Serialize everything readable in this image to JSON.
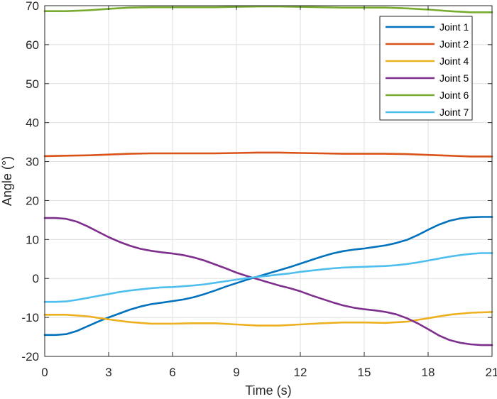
{
  "chart_data": {
    "type": "line",
    "title": "",
    "xlabel": "Time (s)",
    "ylabel": "Angle (°)",
    "xlim": [
      0,
      21
    ],
    "ylim": [
      -20,
      70
    ],
    "xticks": [
      0,
      3,
      6,
      9,
      12,
      15,
      18,
      21
    ],
    "yticks": [
      -20,
      -10,
      0,
      10,
      20,
      30,
      40,
      50,
      60,
      70
    ],
    "xtick_labels": [
      "0",
      "3",
      "6",
      "9",
      "12",
      "15",
      "18",
      "21"
    ],
    "ytick_labels": [
      "-20",
      "-10",
      "0",
      "10",
      "20",
      "30",
      "40",
      "50",
      "60",
      "70"
    ],
    "grid": true,
    "legend_position": "top-right",
    "series": [
      {
        "name": "Joint 1",
        "color": "#0072BD",
        "x": [
          0,
          0.5,
          1,
          1.5,
          2,
          2.5,
          3,
          3.5,
          4,
          4.5,
          5,
          5.5,
          6,
          6.5,
          7,
          7.5,
          8,
          8.5,
          9,
          9.5,
          10,
          10.5,
          11,
          11.5,
          12,
          12.5,
          13,
          13.5,
          14,
          14.5,
          15,
          15.5,
          16,
          16.5,
          17,
          17.5,
          18,
          18.5,
          19,
          19.5,
          20,
          20.5,
          21
        ],
        "y": [
          -14.5,
          -14.5,
          -14.3,
          -13.5,
          -12.3,
          -11.1,
          -10.0,
          -9.0,
          -8.0,
          -7.2,
          -6.6,
          -6.2,
          -5.8,
          -5.4,
          -4.8,
          -4.0,
          -3.1,
          -2.1,
          -1.2,
          -0.3,
          0.5,
          1.3,
          2.1,
          2.9,
          3.8,
          4.7,
          5.6,
          6.4,
          7.0,
          7.4,
          7.7,
          8.1,
          8.5,
          9.1,
          9.9,
          11.1,
          12.5,
          13.8,
          14.8,
          15.4,
          15.7,
          15.8,
          15.8
        ]
      },
      {
        "name": "Joint 2",
        "color": "#D95319",
        "x": [
          0,
          1,
          2,
          3,
          4,
          5,
          6,
          7,
          8,
          9,
          10,
          11,
          12,
          13,
          14,
          15,
          16,
          17,
          18,
          19,
          20,
          21
        ],
        "y": [
          31.4,
          31.5,
          31.6,
          31.8,
          32.0,
          32.1,
          32.1,
          32.1,
          32.1,
          32.2,
          32.3,
          32.3,
          32.2,
          32.1,
          32.0,
          32.0,
          32.0,
          31.9,
          31.7,
          31.5,
          31.3,
          31.3
        ]
      },
      {
        "name": "Joint 4",
        "color": "#EDB120",
        "x": [
          0,
          1,
          2,
          3,
          4,
          5,
          6,
          7,
          8,
          9,
          10,
          11,
          12,
          13,
          14,
          15,
          16,
          17,
          18,
          19,
          20,
          21
        ],
        "y": [
          -9.3,
          -9.3,
          -9.7,
          -10.5,
          -11.2,
          -11.6,
          -11.6,
          -11.5,
          -11.5,
          -11.8,
          -12.1,
          -12.1,
          -11.8,
          -11.5,
          -11.3,
          -11.3,
          -11.4,
          -11.1,
          -10.2,
          -9.3,
          -8.8,
          -8.6
        ]
      },
      {
        "name": "Joint 5",
        "color": "#7E2F8E",
        "x": [
          0,
          0.5,
          1,
          1.5,
          2,
          2.5,
          3,
          3.5,
          4,
          4.5,
          5,
          5.5,
          6,
          6.5,
          7,
          7.5,
          8,
          8.5,
          9,
          9.5,
          10,
          10.5,
          11,
          11.5,
          12,
          12.5,
          13,
          13.5,
          14,
          14.5,
          15,
          15.5,
          16,
          16.5,
          17,
          17.5,
          18,
          18.5,
          19,
          19.5,
          20,
          20.5,
          21
        ],
        "y": [
          15.5,
          15.5,
          15.3,
          14.6,
          13.4,
          12.0,
          10.6,
          9.4,
          8.4,
          7.6,
          7.1,
          6.7,
          6.4,
          6.0,
          5.4,
          4.6,
          3.6,
          2.6,
          1.5,
          0.6,
          -0.2,
          -1.0,
          -1.8,
          -2.5,
          -3.3,
          -4.3,
          -5.2,
          -6.1,
          -6.9,
          -7.5,
          -7.9,
          -8.2,
          -8.6,
          -9.2,
          -10.2,
          -11.5,
          -13.0,
          -14.6,
          -15.8,
          -16.5,
          -16.9,
          -17.1,
          -17.1
        ]
      },
      {
        "name": "Joint 6",
        "color": "#77AC30",
        "x": [
          0,
          1,
          2,
          3,
          4,
          5,
          6,
          7,
          8,
          9,
          10,
          11,
          12,
          13,
          14,
          15,
          16,
          17,
          18,
          19,
          20,
          21
        ],
        "y": [
          68.6,
          68.6,
          68.8,
          69.2,
          69.5,
          69.6,
          69.6,
          69.6,
          69.6,
          69.7,
          69.8,
          69.8,
          69.7,
          69.6,
          69.5,
          69.5,
          69.5,
          69.3,
          69.0,
          68.6,
          68.3,
          68.3
        ]
      },
      {
        "name": "Joint 7",
        "color": "#4DBEEE",
        "x": [
          0,
          0.5,
          1,
          1.5,
          2,
          2.5,
          3,
          3.5,
          4,
          4.5,
          5,
          5.5,
          6,
          6.5,
          7,
          7.5,
          8,
          8.5,
          9,
          9.5,
          10,
          10.5,
          11,
          11.5,
          12,
          12.5,
          13,
          13.5,
          14,
          14.5,
          15,
          15.5,
          16,
          16.5,
          17,
          17.5,
          18,
          18.5,
          19,
          19.5,
          20,
          20.5,
          21
        ],
        "y": [
          -6.0,
          -6.0,
          -5.9,
          -5.5,
          -5.0,
          -4.5,
          -4.0,
          -3.5,
          -3.1,
          -2.8,
          -2.5,
          -2.3,
          -2.2,
          -2.0,
          -1.8,
          -1.5,
          -1.1,
          -0.7,
          -0.3,
          0.1,
          0.4,
          0.7,
          1.0,
          1.3,
          1.7,
          2.0,
          2.3,
          2.6,
          2.8,
          2.9,
          3.0,
          3.1,
          3.2,
          3.4,
          3.7,
          4.1,
          4.6,
          5.1,
          5.6,
          6.0,
          6.3,
          6.5,
          6.5
        ]
      }
    ]
  }
}
